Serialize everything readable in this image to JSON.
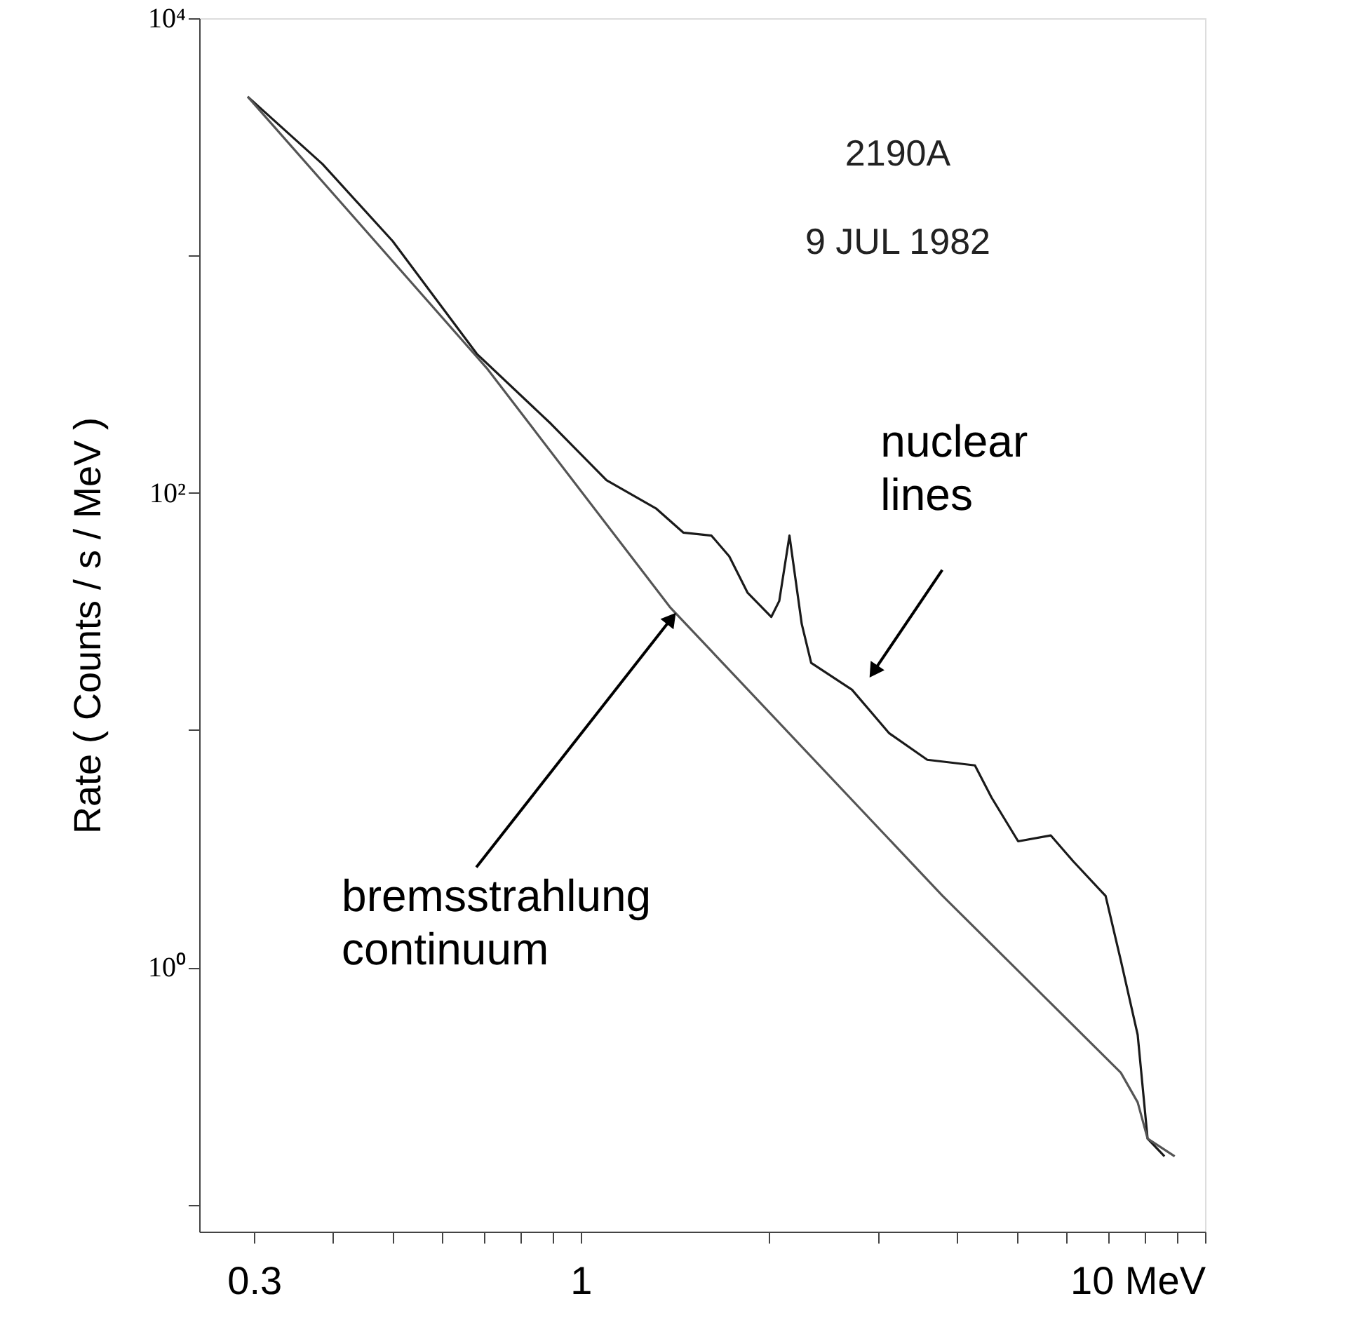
{
  "chart_data": {
    "type": "line",
    "ylabel": "Rate ( Counts / s / MeV )",
    "log": "xy",
    "grid": false,
    "xlim": [
      0.245,
      10
    ],
    "ylim": [
      0.077,
      10000
    ],
    "xticks": [
      0.3,
      {
        "value": 0.4,
        "label": null
      },
      {
        "value": 0.5,
        "label": null
      },
      {
        "value": 0.6,
        "label": null
      },
      {
        "value": 0.7,
        "label": null
      },
      {
        "value": 0.8,
        "label": null
      },
      {
        "value": 0.9,
        "label": null
      },
      1,
      {
        "value": 2,
        "label": null
      },
      {
        "value": 3,
        "label": null
      },
      {
        "value": 4,
        "label": null
      },
      {
        "value": 5,
        "label": null
      },
      {
        "value": 6,
        "label": null
      },
      {
        "value": 7,
        "label": null
      },
      {
        "value": 8,
        "label": null
      },
      {
        "value": 9,
        "label": null
      },
      {
        "value": 10,
        "label": "10 MeV"
      }
    ],
    "yticks": [
      {
        "value": 10000,
        "label": "10⁴"
      },
      {
        "value": 1000,
        "label": null
      },
      {
        "value": 100,
        "label": "10²"
      },
      {
        "value": 10,
        "label": null
      },
      {
        "value": 1,
        "label": "10⁰"
      },
      {
        "value": 0.1,
        "label": null
      }
    ],
    "series": [
      {
        "color": "#1a1a1a",
        "x": [
          0.293,
          0.386,
          0.5,
          0.682,
          0.897,
          1.1,
          1.32,
          1.46,
          1.62,
          1.73,
          1.85,
          2.02,
          2.08,
          2.16,
          2.26,
          2.34,
          2.72,
          3.12,
          3.59,
          4.28,
          4.55,
          5.02,
          5.66,
          6.15,
          6.93,
          7.33,
          7.8,
          8.09,
          8.61
        ],
        "values": [
          4670,
          2430,
          1150,
          385,
          195,
          113,
          86,
          68,
          66,
          54,
          38,
          30,
          35,
          66,
          28,
          19.2,
          14.8,
          9.7,
          7.5,
          7.1,
          5.2,
          3.4,
          3.6,
          2.8,
          2.0,
          1.07,
          0.52,
          0.19,
          0.16
        ]
      },
      {
        "color": "#555555",
        "x": [
          0.293,
          0.707,
          1.39,
          3.8,
          7.33,
          7.8,
          8.09,
          8.94
        ],
        "values": [
          4670,
          336,
          33,
          2.0,
          0.36,
          0.27,
          0.19,
          0.16
        ]
      }
    ],
    "annotations": [
      "2190A",
      "9 JUL 1982",
      {
        "text": "nuclear lines",
        "x": 2.96,
        "y": 18
      },
      {
        "text": "bremsstrahlung continuum",
        "x": 1.39,
        "y": 29
      }
    ]
  }
}
